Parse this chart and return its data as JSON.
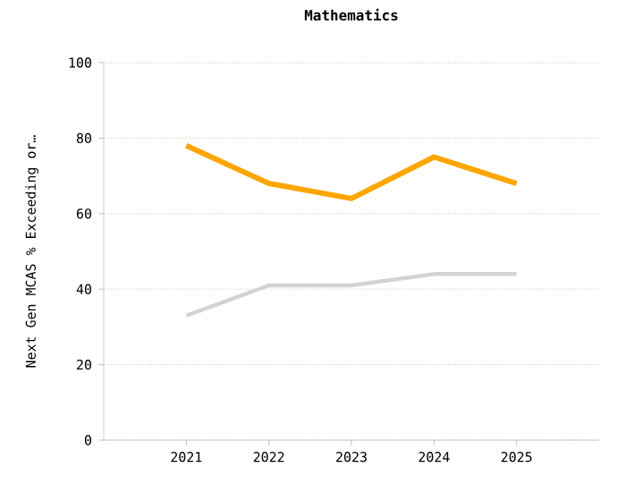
{
  "chart_data": {
    "type": "line",
    "title": "Mathematics",
    "ylabel": "Next Gen MCAS % Exceeding or…",
    "categories": [
      "2021",
      "2022",
      "2023",
      "2024",
      "2025"
    ],
    "series": [
      {
        "color": "#ffa500",
        "values": [
          78,
          68,
          64,
          75,
          68
        ]
      },
      {
        "color": "#d3d3d3",
        "values": [
          33,
          41,
          41,
          44,
          44
        ]
      }
    ],
    "ylim": [
      0,
      100
    ],
    "yticks": [
      0,
      20,
      40,
      60,
      80,
      100
    ],
    "grid": "y"
  }
}
